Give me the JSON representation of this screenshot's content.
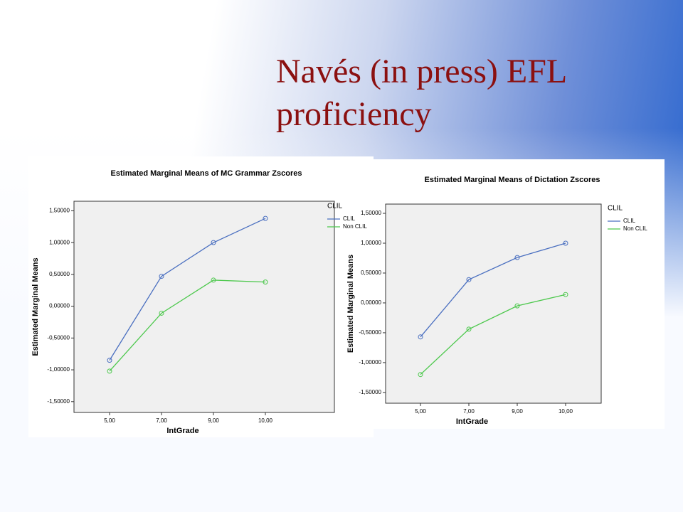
{
  "slide_title": "Navés (in press) EFL proficiency",
  "chart_data": [
    {
      "type": "line",
      "title": "Estimated Marginal Means of MC Grammar Zscores",
      "xlabel": "IntGrade",
      "ylabel": "Estimated Marginal Means",
      "legend_title": "CLIL",
      "categories": [
        "5,00",
        "7,00",
        "9,00",
        "10,00"
      ],
      "series": [
        {
          "name": "CLIL",
          "color": "#4a6fc0",
          "values": [
            -0.85,
            0.47,
            1.0,
            1.38
          ]
        },
        {
          "name": "Non CLIL",
          "color": "#4cc84c",
          "values": [
            -1.02,
            -0.11,
            0.41,
            0.38
          ]
        }
      ],
      "ylim": [
        -1.67,
        1.65
      ],
      "yticks": [
        {
          "value": -1.5,
          "label": "-1,50000"
        },
        {
          "value": -1.0,
          "label": "-1,00000"
        },
        {
          "value": -0.5,
          "label": "-0,50000"
        },
        {
          "value": 0,
          "label": "0,00000"
        },
        {
          "value": 0.5,
          "label": "0,50000"
        },
        {
          "value": 1.0,
          "label": "1,00000"
        },
        {
          "value": 1.5,
          "label": "1,50000"
        }
      ],
      "grid": false,
      "legend": "right"
    },
    {
      "type": "line",
      "title": "Estimated Marginal Means of Dictation Zscores",
      "xlabel": "IntGrade",
      "ylabel": "Estimated Marginal Means",
      "legend_title": "CLIL",
      "categories": [
        "5,00",
        "7,00",
        "9,00",
        "10,00"
      ],
      "series": [
        {
          "name": "CLIL",
          "color": "#4a6fc0",
          "values": [
            -0.57,
            0.39,
            0.76,
            1.0
          ]
        },
        {
          "name": "Non CLIL",
          "color": "#4cc84c",
          "values": [
            -1.2,
            -0.44,
            -0.05,
            0.14
          ]
        }
      ],
      "ylim": [
        -1.68,
        1.655
      ],
      "yticks": [
        {
          "value": -1.5,
          "label": "-1,50000"
        },
        {
          "value": -1.0,
          "label": "-1,00000"
        },
        {
          "value": -0.5,
          "label": "-0,50000"
        },
        {
          "value": 0,
          "label": "0,00000"
        },
        {
          "value": 0.5,
          "label": "0,50000"
        },
        {
          "value": 1.0,
          "label": "1,00000"
        },
        {
          "value": 1.5,
          "label": "1,50000"
        }
      ],
      "grid": false,
      "legend": "right"
    }
  ]
}
